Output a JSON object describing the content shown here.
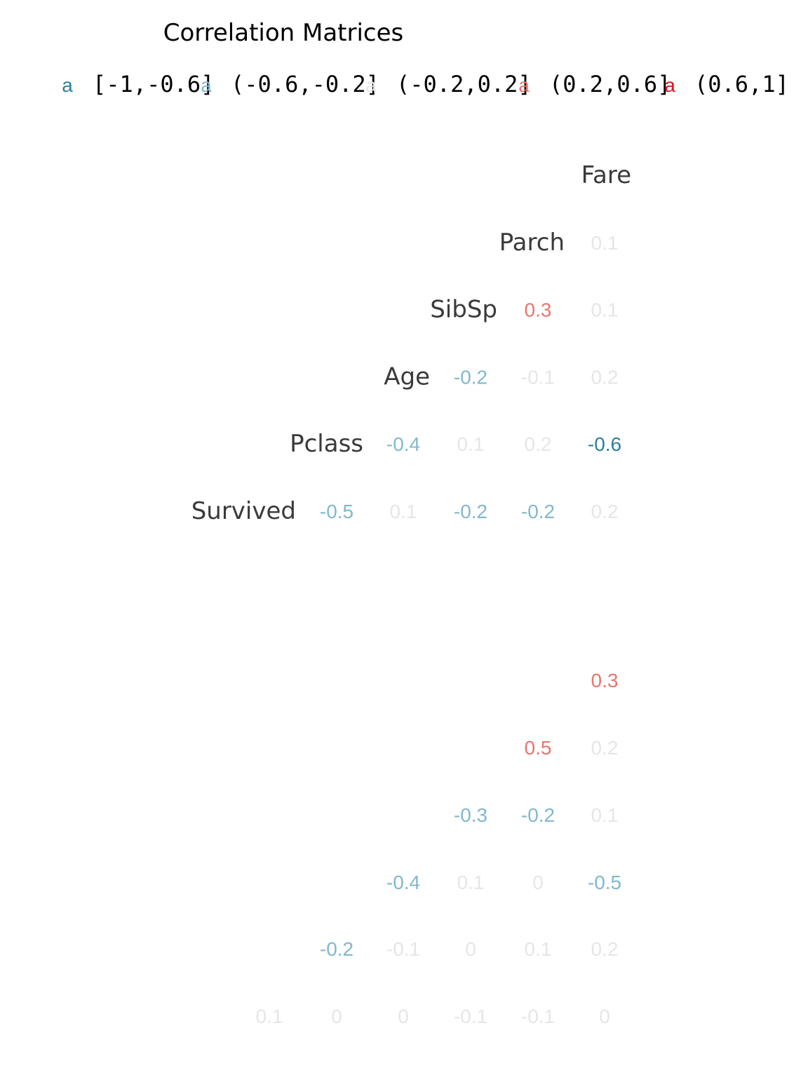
{
  "chart_data": [
    {
      "type": "heatmap",
      "title": "Correlation Matrices",
      "legend": {
        "position": "top",
        "key_glyph": "a",
        "bins": [
          {
            "label": "[-1,-0.6]",
            "color": "#2e7f99"
          },
          {
            "label": "(-0.6,-0.2]",
            "color": "#82b8cc"
          },
          {
            "label": "(-0.2,0.2]",
            "color": "#e6e6e6"
          },
          {
            "label": "(0.2,0.6]",
            "color": "#e8766c"
          },
          {
            "label": "(0.6,1]",
            "color": "#d6121c"
          }
        ]
      },
      "variables": [
        "Survived",
        "Pclass",
        "Age",
        "SibSp",
        "Parch",
        "Fare"
      ],
      "cells": [
        {
          "row": "Parch",
          "col": "Fare",
          "value": 0.1
        },
        {
          "row": "SibSp",
          "col": "Parch",
          "value": 0.3
        },
        {
          "row": "SibSp",
          "col": "Fare",
          "value": 0.1
        },
        {
          "row": "Age",
          "col": "SibSp",
          "value": -0.2
        },
        {
          "row": "Age",
          "col": "Parch",
          "value": -0.1
        },
        {
          "row": "Age",
          "col": "Fare",
          "value": 0.2
        },
        {
          "row": "Pclass",
          "col": "Age",
          "value": -0.4
        },
        {
          "row": "Pclass",
          "col": "SibSp",
          "value": 0.1
        },
        {
          "row": "Pclass",
          "col": "Parch",
          "value": 0.2
        },
        {
          "row": "Pclass",
          "col": "Fare",
          "value": -0.6
        },
        {
          "row": "Survived",
          "col": "Pclass",
          "value": -0.5
        },
        {
          "row": "Survived",
          "col": "Age",
          "value": 0.1
        },
        {
          "row": "Survived",
          "col": "SibSp",
          "value": -0.2
        },
        {
          "row": "Survived",
          "col": "Parch",
          "value": -0.2
        },
        {
          "row": "Survived",
          "col": "Fare",
          "value": 0.2
        }
      ],
      "grid": false
    },
    {
      "type": "heatmap",
      "title": "",
      "rows": [
        [
          "",
          "",
          "",
          "",
          "",
          "0.3"
        ],
        [
          "",
          "",
          "",
          "",
          "0.5",
          "0.2"
        ],
        [
          "",
          "",
          "",
          "-0.3",
          "-0.2",
          "0.1"
        ],
        [
          "",
          "",
          "-0.4",
          "0.1",
          "0",
          "-0.5"
        ],
        [
          "",
          "-0.2",
          "-0.1",
          "0",
          "0.1",
          "0.2"
        ],
        [
          "0.1",
          "0",
          "0",
          "-0.1",
          "-0.1",
          "0"
        ]
      ],
      "grid": false
    }
  ]
}
